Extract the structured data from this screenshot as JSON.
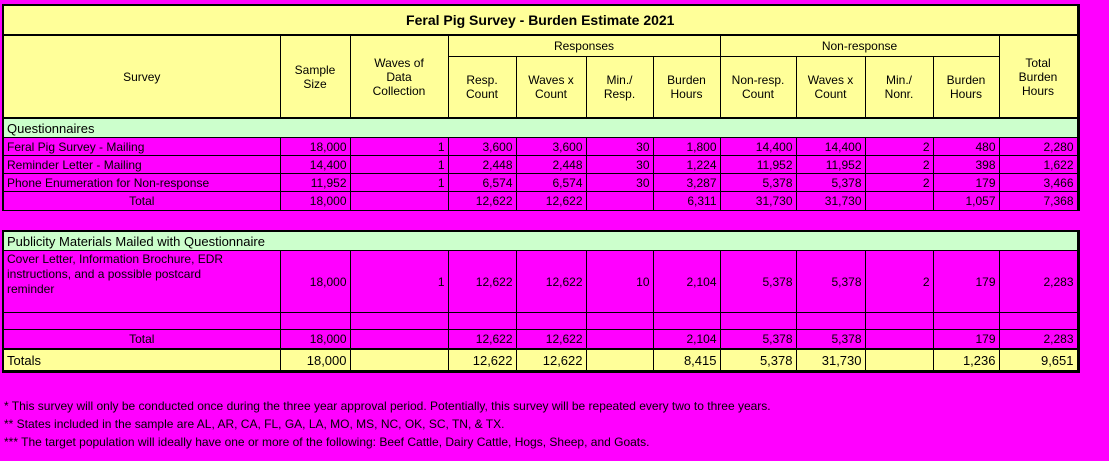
{
  "colors": {
    "background": "#ff00ff",
    "cell_yellow": "#ffff99",
    "section_green": "#ccffcc",
    "row_magenta": "#ff00ff",
    "border": "#000000"
  },
  "table": {
    "title": "Feral Pig Survey - Burden Estimate 2021",
    "header": {
      "survey": "Survey",
      "sample_size": "Sample\nSize",
      "waves_of_data_collection": "Waves of\nData\nCollection",
      "responses_group": "Responses",
      "non_response_group": "Non-response",
      "resp_count": "Resp.\nCount",
      "resp_waves_x_count": "Waves x\nCount",
      "min_per_resp": "Min./\nResp.",
      "resp_burden_hours": "Burden\nHours",
      "nonresp_count": "Non-resp.\nCount",
      "nonresp_waves_x_count": "Waves x\nCount",
      "min_per_nonr": "Min./\nNonr.",
      "nonresp_burden_hours": "Burden\nHours",
      "total_burden_hours": "Total\nBurden\nHours"
    },
    "sections": [
      {
        "label": "Questionnaires",
        "rows": [
          {
            "type": "data",
            "cells": [
              "Feral Pig Survey - Mailing",
              "18,000",
              "1",
              "3,600",
              "3,600",
              "30",
              "1,800",
              "14,400",
              "14,400",
              "2",
              "480",
              "2,280"
            ]
          },
          {
            "type": "data",
            "cells": [
              "Reminder Letter - Mailing",
              "14,400",
              "1",
              "2,448",
              "2,448",
              "30",
              "1,224",
              "11,952",
              "11,952",
              "2",
              "398",
              "1,622"
            ]
          },
          {
            "type": "data",
            "cells": [
              "Phone Enumeration for Non-response",
              "11,952",
              "1",
              "6,574",
              "6,574",
              "30",
              "3,287",
              "5,378",
              "5,378",
              "2",
              "179",
              "3,466"
            ]
          },
          {
            "type": "total",
            "cells": [
              "Total",
              "18,000",
              "",
              "12,622",
              "12,622",
              "",
              "6,311",
              "31,730",
              "31,730",
              "",
              "1,057",
              "7,368"
            ]
          }
        ]
      },
      {
        "label": "Publicity Materials Mailed with Questionnaire",
        "rows": [
          {
            "type": "data-tall",
            "cells": [
              "Cover Letter, Information Brochure, EDR\ninstructions, and a possible postcard\nreminder",
              "18,000",
              "1",
              "12,622",
              "12,622",
              "10",
              "2,104",
              "5,378",
              "5,378",
              "2",
              "179",
              "2,283"
            ]
          },
          {
            "type": "empty",
            "cells": [
              "",
              "",
              "",
              "",
              "",
              "",
              "",
              "",
              "",
              "",
              "",
              ""
            ]
          },
          {
            "type": "total",
            "cells": [
              "Total",
              "18,000",
              "",
              "12,622",
              "12,622",
              "",
              "2,104",
              "5,378",
              "5,378",
              "",
              "179",
              "2,283"
            ]
          }
        ]
      }
    ],
    "grand_total": {
      "cells": [
        "Totals",
        "18,000",
        "",
        "12,622",
        "12,622",
        "",
        "8,415",
        "5,378",
        "31,730",
        "",
        "1,236",
        "9,651"
      ]
    }
  },
  "footnotes": [
    "* This survey will only be conducted once during the three year approval period.  Potentially, this survey will be repeated every two to three years.",
    "** States included in the sample are AL, AR, CA, FL, GA, LA, MO, MS, NC, OK, SC, TN, & TX.",
    "*** The target population will ideally have one or more of the following: Beef Cattle, Dairy Cattle, Hogs, Sheep, and Goats."
  ]
}
